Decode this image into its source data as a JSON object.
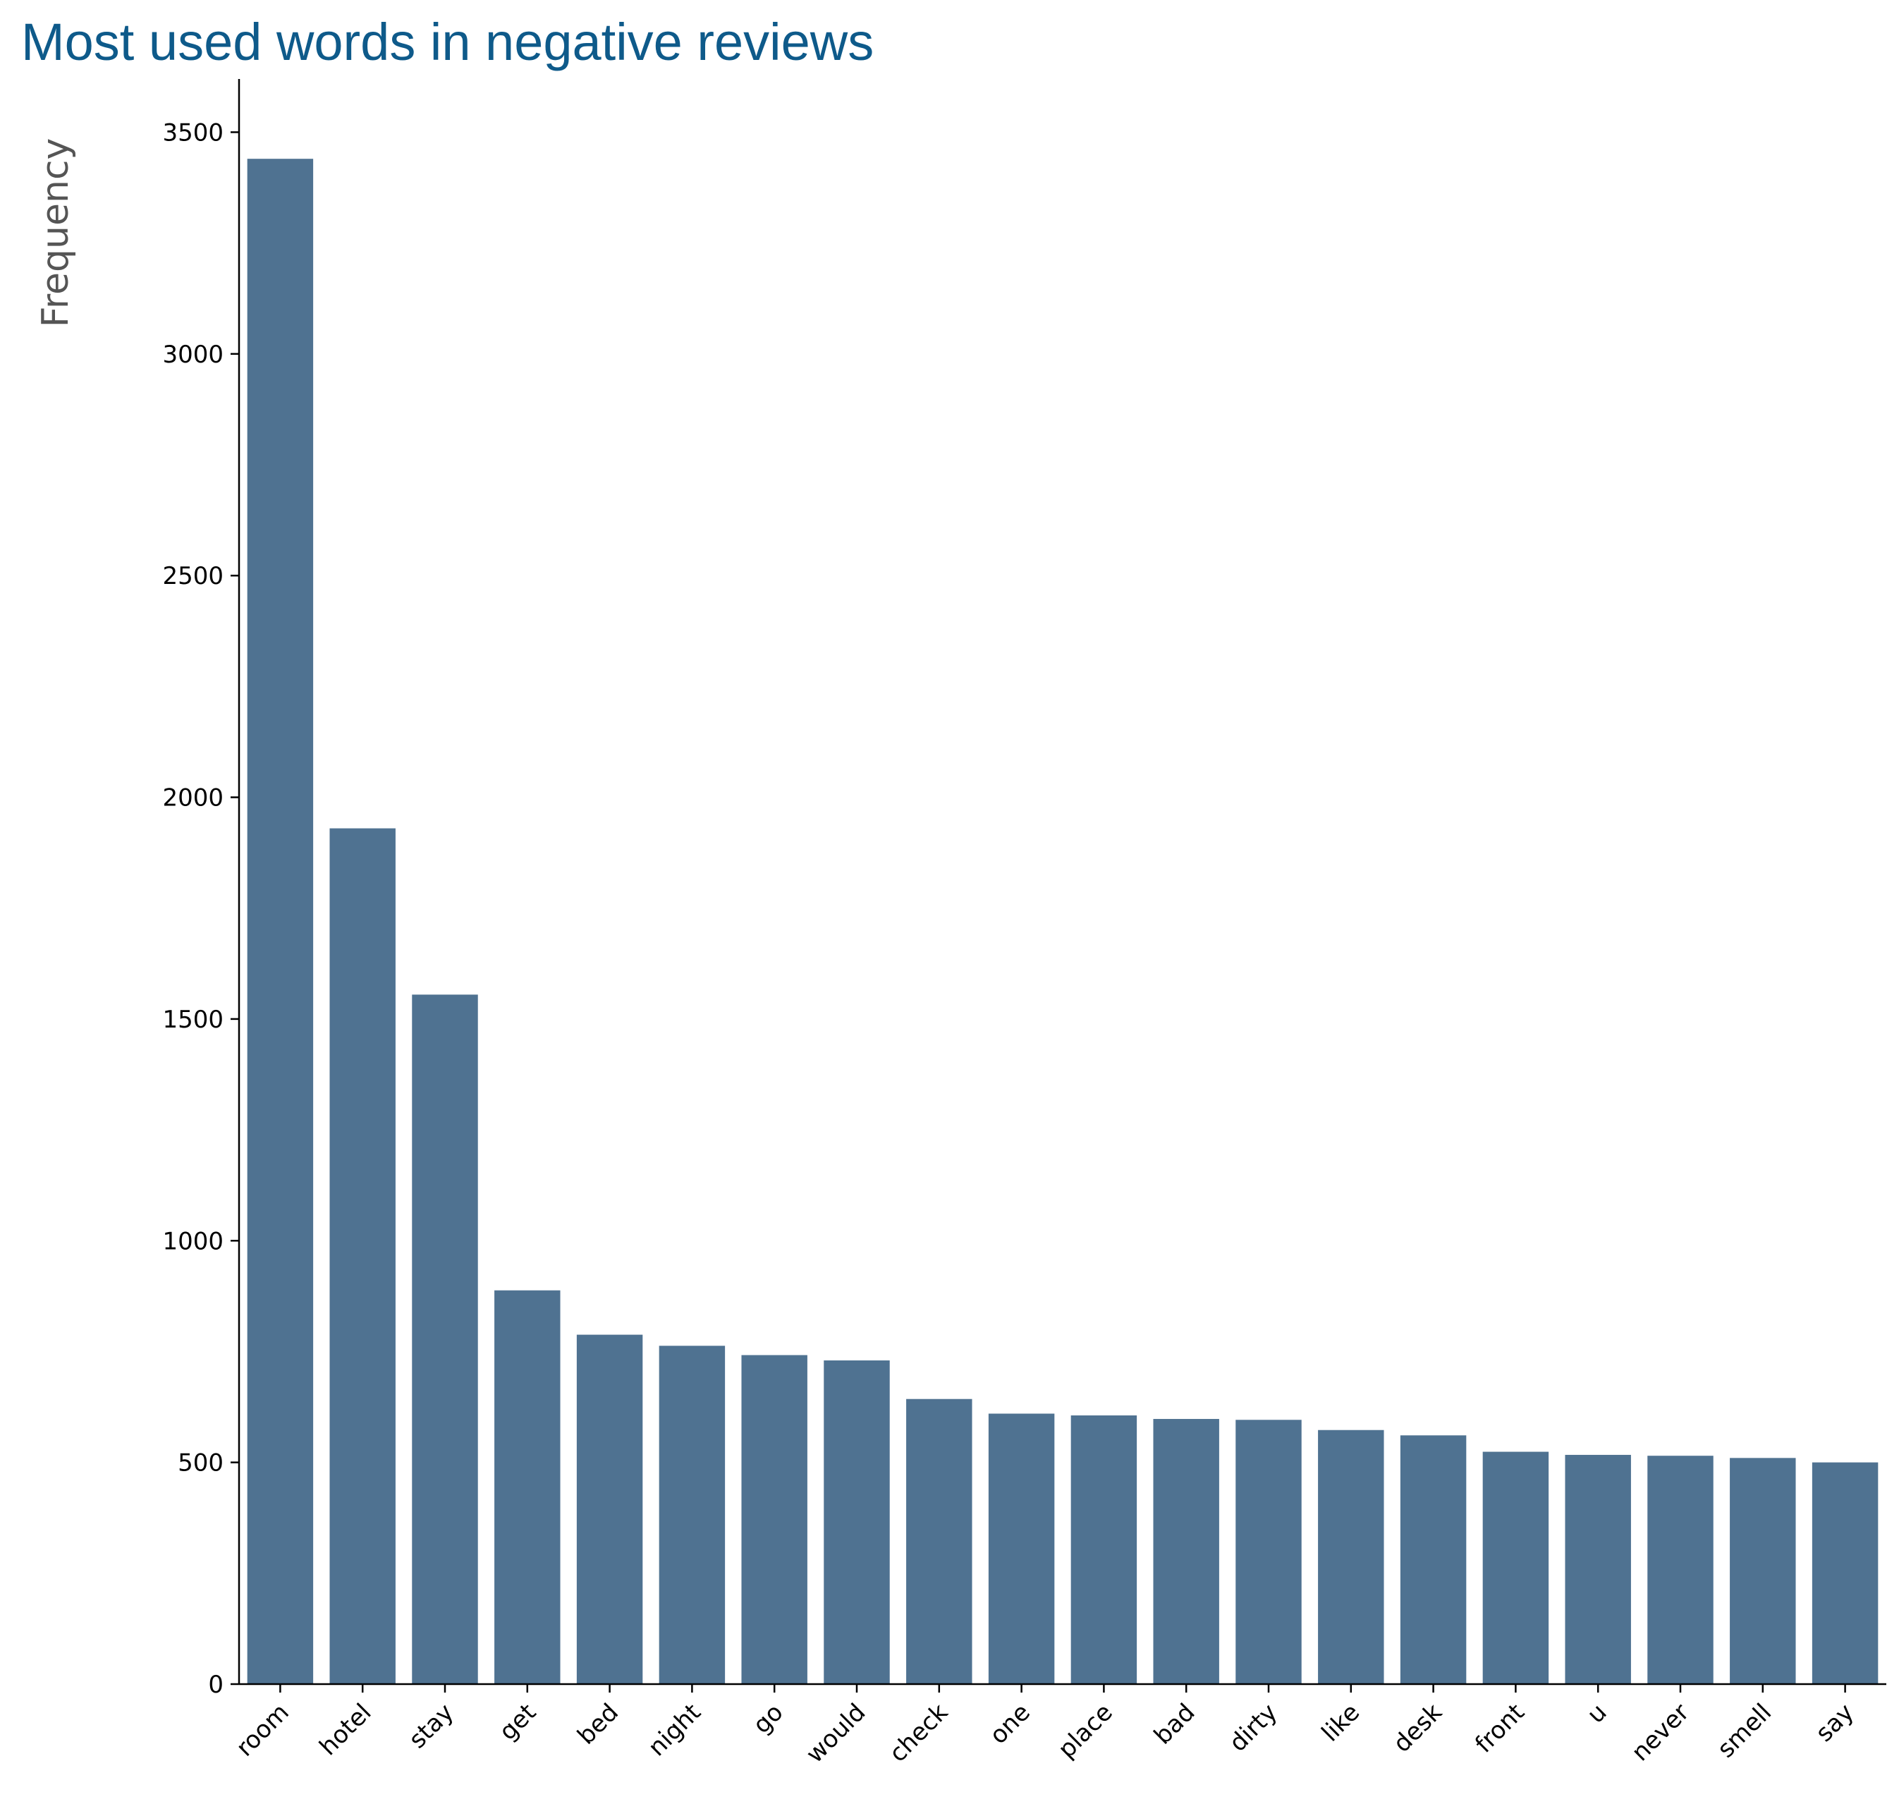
{
  "chart_data": {
    "type": "bar",
    "title": "Most used words in negative reviews",
    "xlabel": "",
    "ylabel": "Frequency",
    "categories": [
      "room",
      "hotel",
      "stay",
      "get",
      "bed",
      "night",
      "go",
      "would",
      "check",
      "one",
      "place",
      "bad",
      "dirty",
      "like",
      "desk",
      "front",
      "u",
      "never",
      "smell",
      "say"
    ],
    "values": [
      3440,
      1930,
      1555,
      888,
      788,
      763,
      742,
      730,
      643,
      610,
      606,
      598,
      596,
      573,
      561,
      524,
      517,
      515,
      510,
      500
    ],
    "ylim": [
      0,
      3620
    ],
    "yticks": [
      "0",
      "500",
      "1000",
      "1500",
      "2000",
      "2500",
      "3000",
      "3500"
    ],
    "bar_color": "#4f7291",
    "title_color": "#0e5a8a",
    "grid": false,
    "legend": "none"
  }
}
